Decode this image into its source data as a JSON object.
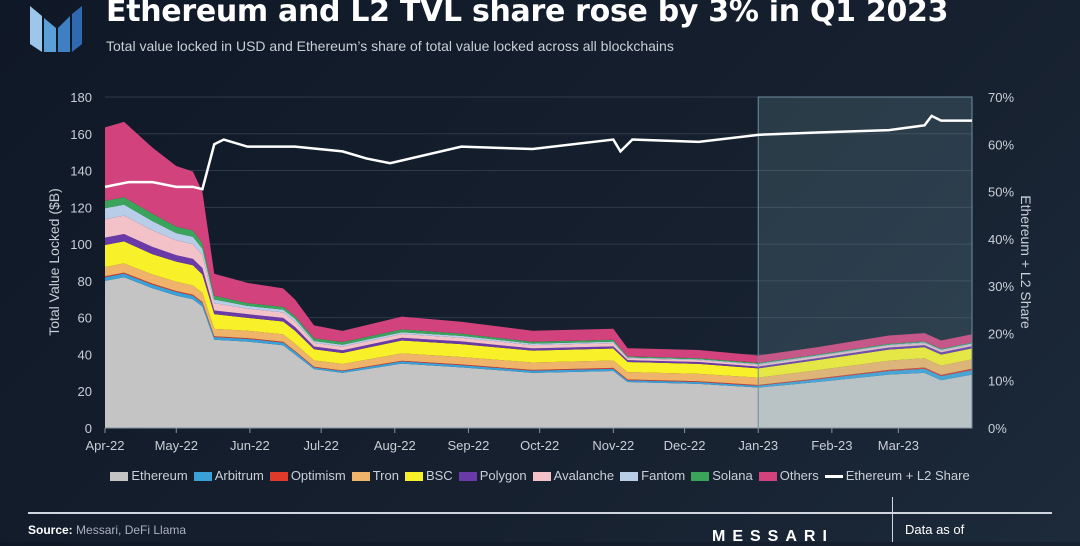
{
  "title": "Ethereum and L2 TVL share rose by 3% in Q1 2023",
  "subtitle": "Total value locked in USD and Ethereum’s share of total value locked across all blockchains",
  "footer": {
    "source_label": "Source:",
    "source_text": "Messari, DeFi Llama",
    "brand": "MESSARI",
    "data_as_of": "Data as of"
  },
  "chart_data": {
    "type": "area",
    "stacked": true,
    "ylabel": "Total Value Locked ($B)",
    "y2label": "Ethereum + L2 Share",
    "ylim": [
      0,
      180
    ],
    "y2lim": [
      0,
      70
    ],
    "yticks": [
      "0",
      "20",
      "40",
      "60",
      "80",
      "100",
      "120",
      "140",
      "160",
      "180"
    ],
    "y2ticks": [
      "0%",
      "10%",
      "20%",
      "30%",
      "40%",
      "50%",
      "60%",
      "70%"
    ],
    "xticks": [
      "Apr-22",
      "May-22",
      "Jun-22",
      "Jul-22",
      "Aug-22",
      "Sep-22",
      "Oct-22",
      "Nov-22",
      "Dec-22",
      "Jan-23",
      "Feb-23",
      "Mar-23"
    ],
    "highlight": "Q1 2023",
    "x_days": [
      0,
      8,
      20,
      30,
      37,
      41,
      46,
      60,
      75,
      80,
      88,
      100,
      125,
      150,
      180,
      214,
      220,
      250,
      275,
      300,
      330,
      345,
      352,
      365
    ],
    "series": [
      {
        "name": "Ethereum",
        "color": "#c4c4c4",
        "values": [
          80,
          82,
          76,
          72,
          70,
          66,
          48,
          47,
          45,
          40,
          32,
          30,
          35,
          33,
          30,
          31,
          25,
          24,
          22,
          25,
          29,
          30,
          26,
          29
        ]
      },
      {
        "name": "Arbitrum",
        "color": "#3aa0d8",
        "values": [
          2,
          2,
          2,
          2,
          2,
          2,
          1.5,
          1.5,
          1.5,
          1.5,
          1,
          1,
          1.2,
          1.2,
          1.2,
          1.2,
          1,
          1,
          1,
          1.5,
          2,
          2.2,
          2.2,
          2.5
        ]
      },
      {
        "name": "Optimism",
        "color": "#e03a2b",
        "values": [
          0.5,
          0.5,
          0.5,
          0.5,
          0.5,
          0.5,
          0.4,
          0.4,
          0.4,
          0.4,
          0.3,
          0.3,
          0.4,
          0.4,
          0.4,
          0.5,
          0.4,
          0.4,
          0.4,
          0.5,
          0.6,
          0.7,
          0.7,
          0.8
        ]
      },
      {
        "name": "Tron",
        "color": "#f0b36a",
        "values": [
          5,
          5,
          5,
          5,
          5,
          5,
          4,
          4,
          4,
          4,
          3.5,
          3.5,
          4,
          4,
          4,
          4,
          4,
          4,
          4,
          4.5,
          5,
          5,
          5,
          5
        ]
      },
      {
        "name": "BSC",
        "color": "#f8f12a",
        "values": [
          12,
          12,
          11,
          11,
          11,
          10,
          8,
          7,
          7,
          7,
          6,
          6,
          7,
          7,
          6.5,
          6.5,
          5.5,
          5.5,
          5,
          5.5,
          6,
          6,
          6,
          6
        ]
      },
      {
        "name": "Polygon",
        "color": "#6a3aa8",
        "values": [
          4,
          4,
          4,
          3.5,
          3.5,
          3.5,
          2,
          2,
          2,
          2,
          1.5,
          1.5,
          1.5,
          1.5,
          1.2,
          1.2,
          1,
          1,
          1,
          1,
          1.2,
          1.2,
          1.2,
          1.2
        ]
      },
      {
        "name": "Avalanche",
        "color": "#f3c1c8",
        "values": [
          10,
          10,
          9,
          8,
          8,
          7,
          4,
          3,
          3,
          3,
          2,
          2,
          2,
          2,
          1.8,
          1.8,
          1,
          1,
          1,
          1,
          1,
          1,
          1,
          1
        ]
      },
      {
        "name": "Fantom",
        "color": "#b8cde8",
        "values": [
          6,
          6,
          5,
          4,
          4,
          3.5,
          2,
          1.5,
          1.5,
          1.5,
          1,
          1,
          1,
          1,
          0.8,
          0.8,
          0.5,
          0.5,
          0.5,
          0.5,
          0.5,
          0.5,
          0.5,
          0.5
        ]
      },
      {
        "name": "Solana",
        "color": "#3aa55a",
        "values": [
          4,
          4,
          4,
          3.5,
          3.5,
          3,
          2,
          1.5,
          1.5,
          1.5,
          1.5,
          1.5,
          1.5,
          1.2,
          1,
          1,
          0.5,
          0.5,
          0.5,
          0.5,
          0.5,
          0.5,
          0.5,
          0.5
        ]
      },
      {
        "name": "Others",
        "color": "#d2427c",
        "values": [
          40,
          41,
          36,
          33,
          32,
          28,
          12,
          11,
          10,
          9,
          7,
          6,
          7,
          6.5,
          6,
          6,
          4.5,
          4.5,
          4,
          4,
          4.5,
          4.5,
          4.5,
          4.5
        ]
      }
    ],
    "line": {
      "name": "Ethereum + L2 Share",
      "color": "#ffffff",
      "x_days": [
        0,
        10,
        20,
        30,
        37,
        41,
        46,
        50,
        60,
        80,
        100,
        110,
        120,
        150,
        180,
        214,
        217,
        222,
        250,
        275,
        300,
        330,
        345,
        348,
        352,
        365
      ],
      "values": [
        51,
        52,
        52,
        51,
        51,
        50.5,
        60,
        61,
        59.5,
        59.5,
        58.5,
        57,
        56,
        59.5,
        59,
        61,
        58.5,
        61,
        60.5,
        62,
        62.5,
        63,
        64,
        66,
        65,
        65
      ]
    }
  }
}
